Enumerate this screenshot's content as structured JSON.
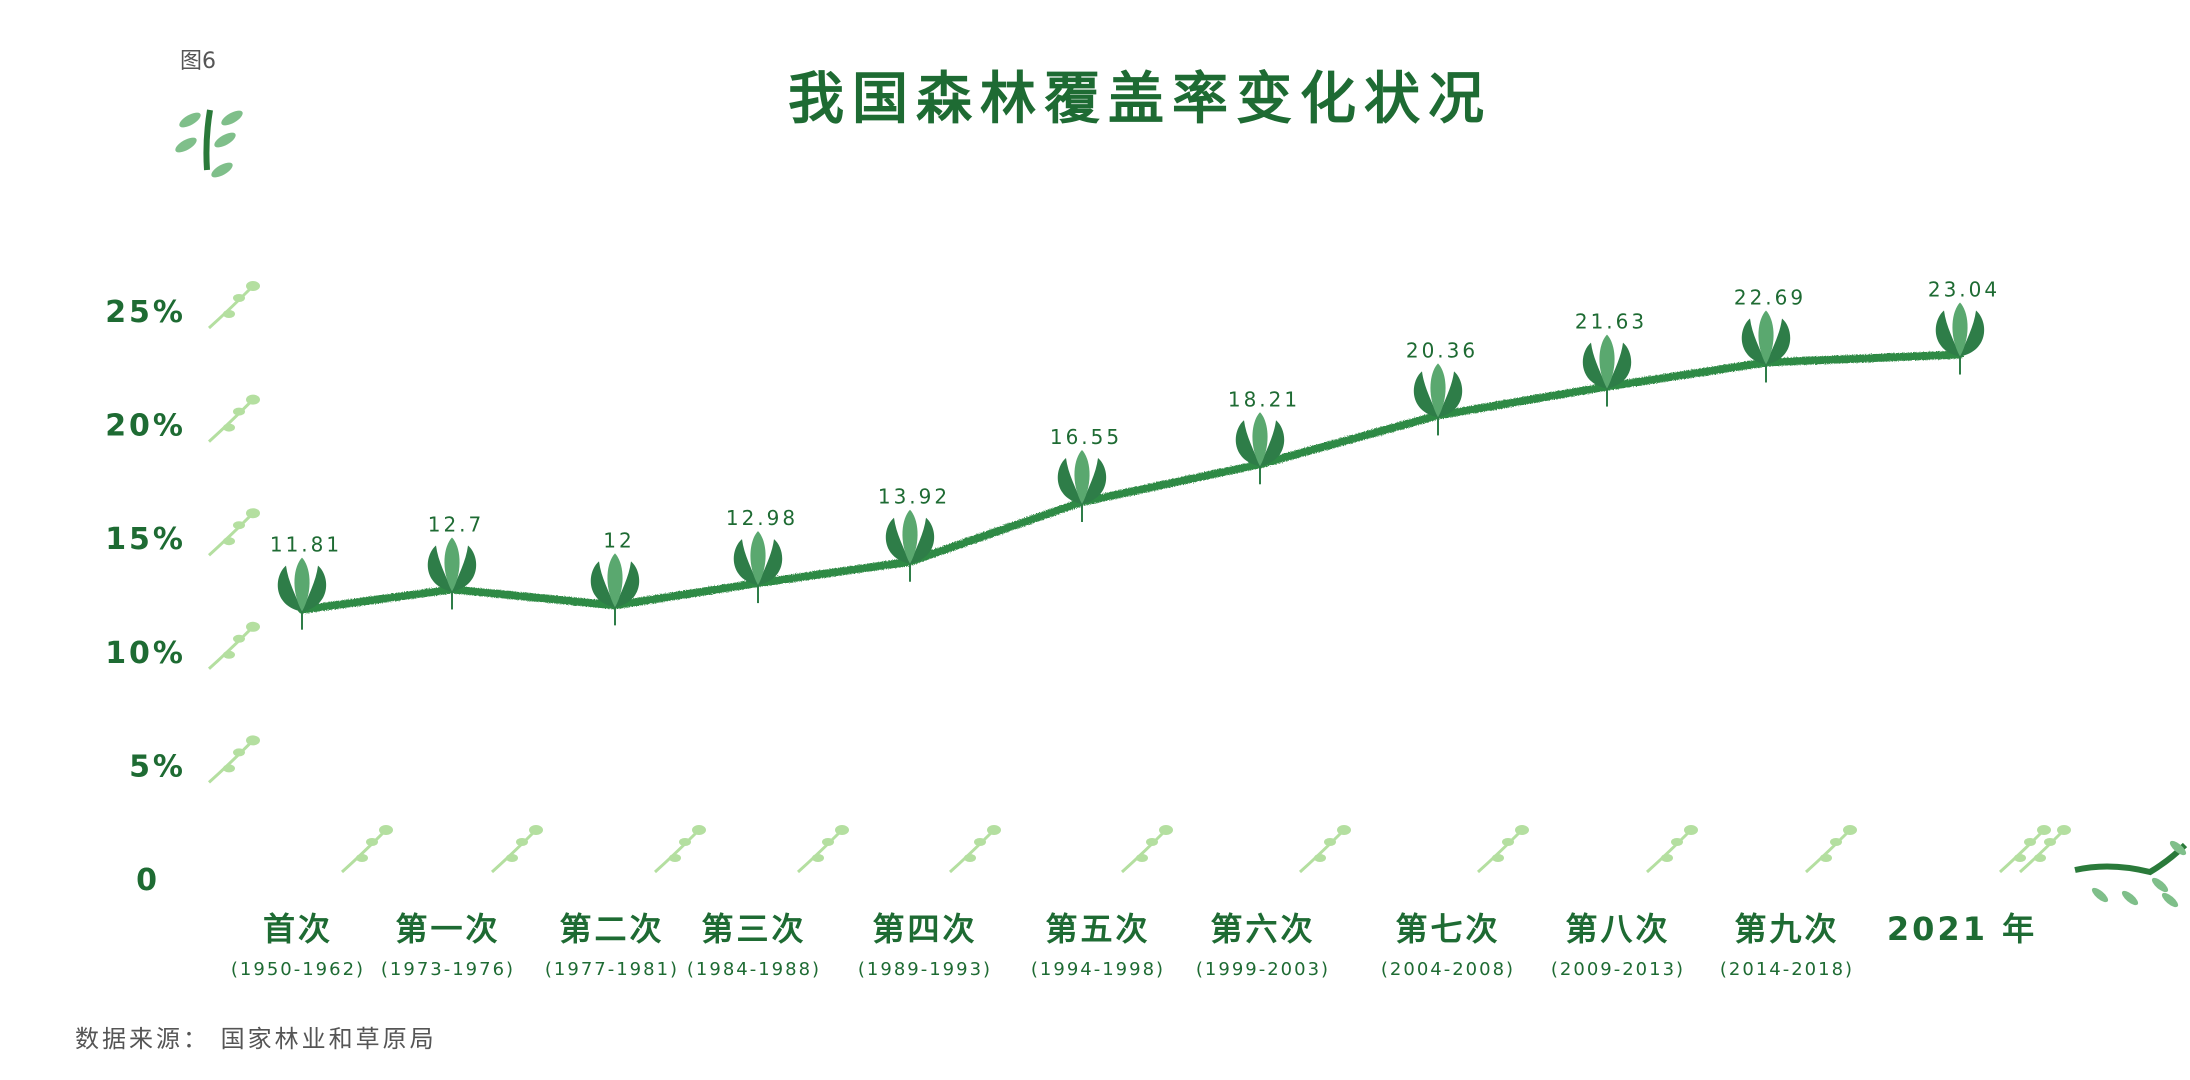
{
  "figure_label": "图6",
  "source_note": "数据来源： 国家林业和草原局",
  "colors": {
    "axis": "#2a7a3a",
    "line": "#2f8a45",
    "leaf_dark": "#2e7d48",
    "leaf_light": "#5aa86f",
    "sprig": "#b4dfa0",
    "text": "#1e6b33"
  },
  "chart_data": {
    "type": "line",
    "title": "我国森林覆盖率变化状况",
    "xlabel": "",
    "ylabel": "",
    "ylim": [
      0,
      25
    ],
    "yticks": [
      0,
      5,
      10,
      15,
      20,
      25
    ],
    "ytick_labels": [
      "0",
      "5%",
      "10%",
      "15%",
      "20%",
      "25%"
    ],
    "categories": [
      "首次",
      "第一次",
      "第二次",
      "第三次",
      "第四次",
      "第五次",
      "第六次",
      "第七次",
      "第八次",
      "第九次",
      "2021 年"
    ],
    "periods": [
      "(1950-1962)",
      "(1973-1976)",
      "(1977-1981)",
      "(1984-1988)",
      "(1989-1993)",
      "(1994-1998)",
      "(1999-2003)",
      "(2004-2008)",
      "(2009-2013)",
      "(2014-2018)",
      ""
    ],
    "series": [
      {
        "name": "森林覆盖率",
        "values": [
          11.81,
          12.7,
          12,
          12.98,
          13.92,
          16.55,
          18.21,
          20.36,
          21.63,
          22.69,
          23.04
        ],
        "value_labels": [
          "11.81",
          "12.7",
          "12",
          "12.98",
          "13.92",
          "16.55",
          "18.21",
          "20.36",
          "21.63",
          "22.69",
          "23.04"
        ]
      }
    ]
  }
}
